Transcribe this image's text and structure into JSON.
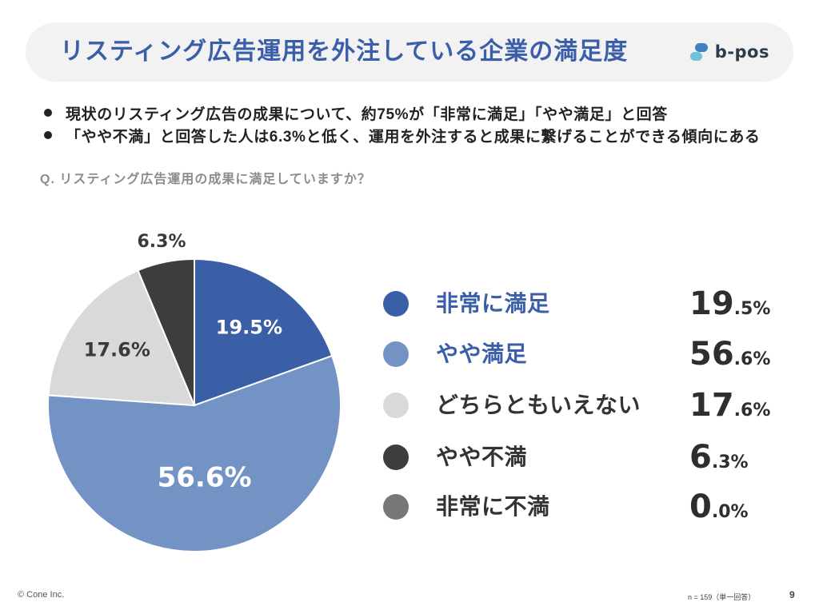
{
  "theme": {
    "accent": "#3b5ea8",
    "header_bg": "#f2f2f2",
    "text": "#222222"
  },
  "header": {
    "title": "リスティング広告運用を外注している企業の満足度",
    "logo_icon": "b-pos-logo-icon",
    "logo_text": "b-pos",
    "logo_colors": [
      "#3f7fc4",
      "#6fc4db"
    ]
  },
  "bullets": [
    {
      "icon": "bullet-dot-icon",
      "text": "現状のリスティング広告の成果について、約75%が「非常に満足」「やや満足」と回答"
    },
    {
      "icon": "bullet-dot-icon",
      "text": "「やや不満」と回答した人は6.3%と低く、運用を外注すると成果に繋げることができる傾向にある"
    }
  ],
  "chart_data": {
    "type": "pie",
    "title": "Q. リスティング広告運用の成果に満足していますか？",
    "categories": [
      "非常に満足",
      "やや満足",
      "どちらともいえない",
      "やや不満",
      "非常に不満"
    ],
    "values": [
      19.5,
      56.6,
      17.6,
      6.3,
      0.0
    ],
    "slice_labels": [
      "19.5%",
      "56.6%",
      "17.6%",
      "6.3%",
      ""
    ],
    "colors": [
      "#3b5fa7",
      "#7393c5",
      "#d9d9d9",
      "#3d3d3d",
      "#777777"
    ],
    "legend_placement": "right"
  },
  "legend": {
    "values": [
      {
        "main": "19",
        "rest": ".5%"
      },
      {
        "main": "56",
        "rest": ".6%"
      },
      {
        "main": "17",
        "rest": ".6%"
      },
      {
        "main": "6",
        "rest": ".3%"
      },
      {
        "main": "0",
        "rest": ".0%"
      }
    ],
    "label_colors": [
      "#3b5ea8",
      "#3b5ea8",
      "#333333",
      "#333333",
      "#333333"
    ]
  },
  "footer": {
    "copyright": "© Cone Inc.",
    "sample_note": "n = 159（単一回答）",
    "page_number": "9"
  }
}
